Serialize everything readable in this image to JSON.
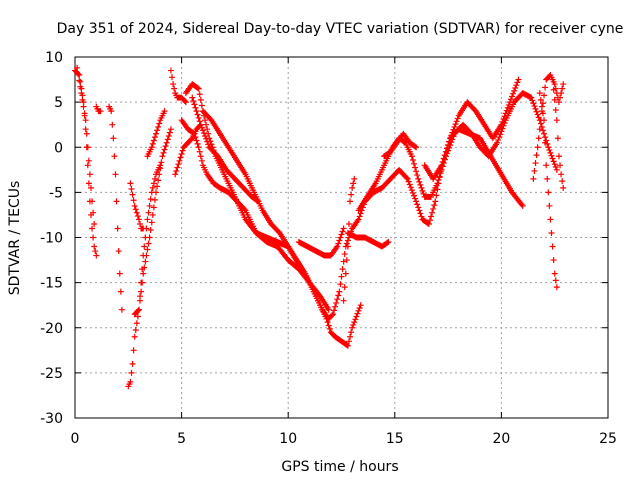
{
  "chart_data": {
    "type": "scatter",
    "title": "Day 351 of 2024, Sidereal Day-to-day VTEC variation (SDTVAR) for receiver cyne",
    "xlabel": "GPS time / hours",
    "ylabel": "SDTVAR / TECUs",
    "xlim": [
      0,
      25
    ],
    "ylim": [
      -30,
      10
    ],
    "xticks": [
      "0",
      "5",
      "10",
      "15",
      "20",
      "25"
    ],
    "yticks": [
      "10",
      "5",
      "0",
      "-5",
      "-10",
      "-15",
      "-20",
      "-25",
      "-30"
    ],
    "grid": true,
    "marker": "+",
    "series": [
      {
        "name": "s1",
        "color": "#ff0000",
        "x": [
          0.0,
          0.2,
          0.4,
          0.5,
          0.6,
          0.7,
          0.8,
          0.9,
          1.0
        ],
        "y": [
          8.5,
          8.0,
          5.0,
          2.0,
          -2.0,
          -6.0,
          -9.0,
          -11.0,
          -12.0
        ]
      },
      {
        "name": "s2",
        "color": "#ff0000",
        "x": [
          0.1,
          0.3,
          0.5,
          0.6,
          0.7,
          0.8,
          0.9
        ],
        "y": [
          8.8,
          6.0,
          3.0,
          0.0,
          -3.0,
          -6.0,
          -8.5
        ]
      },
      {
        "name": "s3",
        "color": "#ff0000",
        "x": [
          1.0,
          1.1,
          1.2
        ],
        "y": [
          4.5,
          4.0,
          4.0
        ]
      },
      {
        "name": "s4",
        "color": "#ff0000",
        "x": [
          1.6,
          1.7,
          1.8,
          1.9,
          2.0,
          2.1,
          2.2
        ],
        "y": [
          4.5,
          4.0,
          1.0,
          -3.0,
          -9.0,
          -14.0,
          -18.0
        ]
      },
      {
        "name": "s5",
        "color": "#ff0000",
        "x": [
          2.5,
          2.6,
          2.7,
          2.8,
          3.0,
          3.2,
          3.4,
          3.6,
          3.8,
          4.0
        ],
        "y": [
          -26.5,
          -26.0,
          -24.0,
          -21.0,
          -18.0,
          -12.0,
          -8.0,
          -5.0,
          -3.0,
          -2.0
        ]
      },
      {
        "name": "s6",
        "color": "#ff0000",
        "x": [
          2.6,
          2.8,
          3.0,
          3.1,
          3.2
        ],
        "y": [
          -4.0,
          -6.5,
          -8.0,
          -9.0,
          -9.0
        ]
      },
      {
        "name": "s7",
        "color": "#ff0000",
        "x": [
          2.8,
          3.0,
          3.2,
          3.5,
          3.8,
          4.1,
          4.5
        ],
        "y": [
          -18.5,
          -18.0,
          -14.0,
          -10.0,
          -5.0,
          -1.0,
          2.0
        ]
      },
      {
        "name": "s8",
        "color": "#ff0000",
        "x": [
          3.4,
          3.6,
          3.8,
          4.0,
          4.2
        ],
        "y": [
          -1.0,
          0.0,
          1.5,
          3.0,
          4.0
        ]
      },
      {
        "name": "s9",
        "color": "#ff0000",
        "x": [
          4.5,
          4.6,
          4.7,
          4.8,
          5.0,
          5.2
        ],
        "y": [
          8.5,
          7.0,
          6.0,
          5.5,
          5.5,
          5.0
        ]
      },
      {
        "name": "s10",
        "color": "#ff0000",
        "x": [
          4.7,
          4.9,
          5.1,
          5.3,
          5.5,
          5.7,
          5.9
        ],
        "y": [
          -3.0,
          -1.5,
          0.0,
          0.5,
          1.0,
          2.0,
          2.5
        ]
      },
      {
        "name": "s11",
        "color": "#ff0000",
        "x": [
          5.0,
          5.3,
          5.6,
          5.8,
          6.0,
          6.2,
          6.5,
          6.8,
          7.2,
          7.6,
          8.0,
          8.5,
          9.0,
          9.5,
          10.0,
          10.5,
          11.0,
          11.5,
          11.8,
          12.0,
          12.2,
          12.5,
          12.8,
          13.0,
          13.4
        ],
        "y": [
          3.0,
          2.0,
          1.5,
          0.0,
          -2.0,
          -3.0,
          -4.0,
          -4.5,
          -5.0,
          -6.0,
          -7.0,
          -9.5,
          -10.5,
          -11.0,
          -12.5,
          -13.5,
          -15.0,
          -17.5,
          -19.0,
          -20.5,
          -21.0,
          -21.5,
          -22.0,
          -20.0,
          -17.5
        ]
      },
      {
        "name": "s12",
        "color": "#ff0000",
        "x": [
          5.2,
          5.5,
          5.8,
          6.0,
          6.3,
          6.6,
          7.0,
          7.5,
          8.0,
          8.5,
          9.0,
          9.5,
          10.0,
          10.4,
          10.8,
          11.2,
          11.6,
          11.9,
          12.1,
          12.4,
          12.7,
          13.0,
          13.3,
          13.6,
          14.0,
          14.4,
          14.8,
          15.2,
          15.6,
          16.0,
          16.3,
          16.6,
          16.9,
          17.2,
          17.6,
          18.0,
          18.5,
          19.0,
          19.5,
          20.0,
          20.5,
          21.0
        ],
        "y": [
          6.0,
          7.0,
          6.5,
          4.0,
          1.0,
          -1.0,
          -3.0,
          -5.5,
          -8.0,
          -9.5,
          -10.0,
          -10.5,
          -11.0,
          -12.5,
          -14.0,
          -16.0,
          -18.0,
          -19.0,
          -18.5,
          -16.0,
          -11.0,
          -9.0,
          -8.0,
          -6.0,
          -5.0,
          -4.5,
          -3.5,
          -2.5,
          -3.5,
          -6.0,
          -8.0,
          -8.5,
          -6.0,
          -2.0,
          1.0,
          2.0,
          1.5,
          1.0,
          -1.0,
          -3.0,
          -5.0,
          -6.5
        ]
      },
      {
        "name": "s13",
        "color": "#ff0000",
        "x": [
          5.5,
          5.9,
          6.3,
          6.7,
          7.1,
          7.5,
          7.9,
          8.3,
          8.6
        ],
        "y": [
          5.5,
          2.5,
          0.0,
          -1.0,
          -2.5,
          -3.5,
          -4.5,
          -5.5,
          -6.0
        ]
      },
      {
        "name": "s14",
        "color": "#ff0000",
        "x": [
          6.0,
          6.4,
          6.8,
          7.2,
          7.6,
          8.0,
          8.4,
          8.8,
          9.2,
          9.6,
          10.0,
          10.5,
          11.0,
          11.5,
          11.9
        ],
        "y": [
          4.0,
          3.0,
          1.5,
          0.0,
          -1.5,
          -3.0,
          -5.0,
          -7.0,
          -8.5,
          -9.5,
          -11.0,
          -13.0,
          -15.0,
          -16.5,
          -18.0
        ]
      },
      {
        "name": "s15",
        "color": "#ff0000",
        "x": [
          10.5,
          10.9,
          11.3,
          11.7,
          12.0,
          12.3,
          12.6
        ],
        "y": [
          -10.5,
          -11.0,
          -11.5,
          -12.0,
          -12.0,
          -11.0,
          -9.0
        ]
      },
      {
        "name": "s16",
        "color": "#ff0000",
        "x": [
          12.6,
          12.8,
          12.9,
          13.0,
          13.1
        ],
        "y": [
          -17.0,
          -11.0,
          -6.0,
          -4.5,
          -3.5
        ]
      },
      {
        "name": "s17",
        "color": "#ff0000",
        "x": [
          12.8,
          13.2,
          13.6,
          14.0,
          14.4,
          14.7
        ],
        "y": [
          -9.5,
          -10.0,
          -10.0,
          -10.5,
          -11.0,
          -10.5
        ]
      },
      {
        "name": "s18",
        "color": "#ff0000",
        "x": [
          13.3,
          13.7,
          14.1,
          14.5,
          14.9,
          15.2,
          15.5,
          15.8,
          16.1,
          16.4,
          16.7,
          17.0,
          17.4,
          17.8,
          18.2,
          18.6,
          19.0,
          19.4,
          19.8,
          20.2,
          20.6,
          21.0,
          21.4,
          21.8,
          22.2,
          22.6
        ],
        "y": [
          -7.0,
          -5.5,
          -4.0,
          -2.0,
          0.0,
          1.0,
          0.5,
          -1.0,
          -3.5,
          -5.5,
          -5.5,
          -4.0,
          -1.0,
          1.5,
          2.5,
          1.5,
          0.0,
          -1.0,
          0.5,
          3.0,
          5.0,
          6.0,
          5.5,
          3.0,
          0.0,
          -2.5
        ]
      },
      {
        "name": "s19",
        "color": "#ff0000",
        "x": [
          14.5,
          14.8,
          15.1,
          15.4,
          15.7,
          16.0
        ],
        "y": [
          -1.0,
          -0.5,
          0.5,
          1.5,
          0.5,
          0.0
        ]
      },
      {
        "name": "s20",
        "color": "#ff0000",
        "x": [
          16.4,
          16.8,
          17.2,
          17.6,
          18.0,
          18.4,
          18.8,
          19.2,
          19.6,
          20.0,
          20.4,
          20.8
        ],
        "y": [
          -2.0,
          -3.5,
          -2.0,
          1.0,
          3.5,
          5.0,
          4.0,
          2.5,
          1.0,
          2.5,
          5.0,
          7.5
        ]
      },
      {
        "name": "s21",
        "color": "#ff0000",
        "x": [
          21.5,
          21.7,
          21.9,
          22.1,
          22.3,
          22.5,
          22.7,
          22.9
        ],
        "y": [
          -3.5,
          0.0,
          4.0,
          7.5,
          8.0,
          7.0,
          5.0,
          7.0
        ]
      },
      {
        "name": "s22",
        "color": "#ff0000",
        "x": [
          21.8,
          22.0,
          22.1,
          22.2,
          22.3,
          22.4,
          22.5,
          22.6
        ],
        "y": [
          6.0,
          3.0,
          -2.0,
          -5.0,
          -8.0,
          -11.0,
          -14.0,
          -15.5
        ]
      },
      {
        "name": "s23",
        "color": "#ff0000",
        "x": [
          22.4,
          22.6,
          22.7,
          22.8,
          22.9
        ],
        "y": [
          7.5,
          3.0,
          -1.0,
          -3.0,
          -4.5
        ]
      }
    ]
  }
}
